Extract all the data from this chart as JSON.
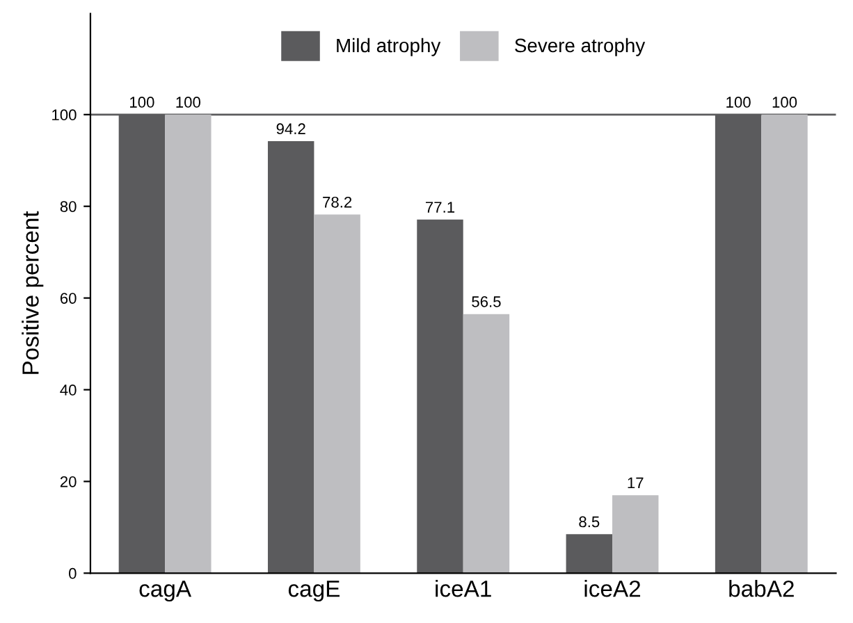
{
  "chart_data": {
    "type": "bar",
    "ylabel": "Positive percent",
    "categories": [
      "cagA",
      "cagE",
      "iceA1",
      "iceA2",
      "babA2"
    ],
    "series": [
      {
        "name": "Mild atrophy",
        "color": "#5b5b5d",
        "values": [
          100,
          94.2,
          77.1,
          8.5,
          100
        ]
      },
      {
        "name": "Severe atrophy",
        "color": "#bebec1",
        "values": [
          100,
          78.2,
          56.5,
          17,
          100
        ]
      }
    ],
    "ylim": [
      0,
      122
    ],
    "yticks": [
      0,
      20,
      40,
      60,
      80,
      100
    ],
    "ref_lines": [
      {
        "axis": "y",
        "value": 100,
        "color": "#5b5b5d"
      }
    ],
    "data_labels": true,
    "legend": "top",
    "grid": false
  }
}
